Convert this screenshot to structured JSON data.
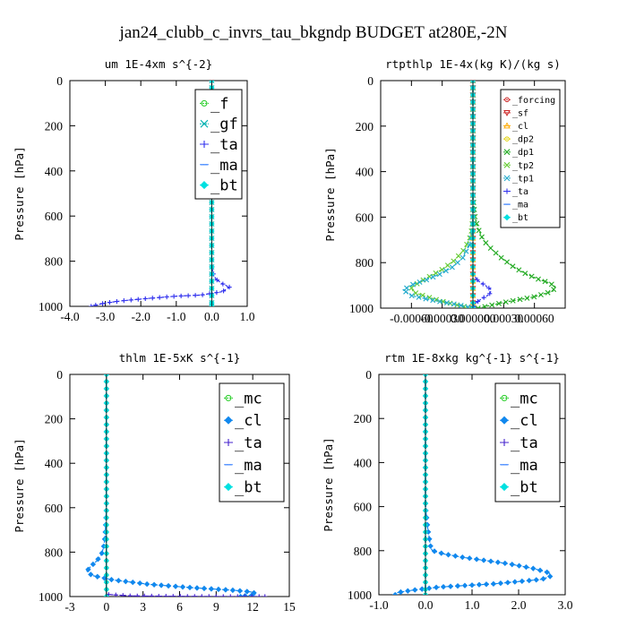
{
  "figure_title": "jan24_clubb_c_invrs_tau_bkgndp  BUDGET at280E,-2N",
  "chart_data": [
    {
      "type": "line",
      "title": "um  1E-4xm s^{-2}",
      "ylabel": "Pressure [hPa]",
      "xlabel": "",
      "xlim": [
        -4.0,
        1.0
      ],
      "ylim": [
        1000,
        0
      ],
      "xticks": [
        -4.0,
        -3.0,
        -2.0,
        -1.0,
        0.0,
        1.0
      ],
      "xtick_labels": [
        "-4.0",
        "-3.0",
        "-2.0",
        "-1.0",
        "0.0",
        "1.0"
      ],
      "yticks": [
        0,
        200,
        400,
        600,
        800,
        1000
      ],
      "legend_position": "top-right",
      "legend_font": 17,
      "series": [
        {
          "name": "_f",
          "color": "#22cc22",
          "marker": "circle",
          "x": [
            0,
            0,
            0,
            0,
            0,
            0,
            0,
            0,
            0,
            0,
            0
          ],
          "y": [
            0,
            100,
            200,
            300,
            400,
            500,
            600,
            700,
            800,
            900,
            1000
          ]
        },
        {
          "name": "_gf",
          "color": "#00b0b0",
          "marker": "x",
          "x": [
            0,
            0,
            0,
            0,
            0,
            0,
            0,
            0,
            0,
            0,
            0
          ],
          "y": [
            0,
            100,
            200,
            300,
            400,
            500,
            600,
            700,
            800,
            900,
            1000
          ]
        },
        {
          "name": "_ta",
          "color": "#3030ee",
          "marker": "plus",
          "x": [
            0,
            0,
            0,
            0,
            0,
            0,
            0.02,
            0.05,
            0.12,
            0.3,
            0.5,
            0.3,
            -0.3,
            -1.0,
            -1.8,
            -2.5,
            -3.0,
            -3.2,
            -3.4
          ],
          "y": [
            0,
            200,
            400,
            600,
            700,
            800,
            840,
            860,
            880,
            900,
            915,
            935,
            950,
            955,
            965,
            975,
            985,
            992,
            1000
          ]
        },
        {
          "name": "_ma",
          "color": "#5090ff",
          "marker": "dash",
          "x": [
            0,
            0,
            0,
            0,
            0,
            0
          ],
          "y": [
            0,
            200,
            400,
            600,
            800,
            1000
          ]
        },
        {
          "name": "_bt",
          "color": "#00e0e0",
          "marker": "diamond",
          "x": [
            0,
            0,
            0,
            0,
            0,
            0
          ],
          "y": [
            0,
            200,
            400,
            600,
            800,
            1000
          ]
        }
      ]
    },
    {
      "type": "line",
      "title": "rtpthlp  1E-4x(kg K)/(kg s)",
      "ylabel": "Pressure [hPa]",
      "xlabel": "",
      "xlim": [
        -0.0009,
        0.0009
      ],
      "ylim": [
        1000,
        0
      ],
      "xticks": [
        -0.0006,
        -0.0003,
        0.0,
        0.0003,
        0.0006
      ],
      "xtick_labels": [
        "-0.00060",
        "-0.00030",
        "0.000000",
        "0.00030",
        "0.00060"
      ],
      "yticks": [
        0,
        200,
        400,
        600,
        800,
        1000
      ],
      "legend_position": "top-right",
      "legend_font": 10,
      "series": [
        {
          "name": "_forcing",
          "color": "#cc2222",
          "marker": "circle",
          "x": [
            0,
            0,
            0,
            0,
            0,
            0,
            0,
            0,
            0,
            0,
            0
          ],
          "y": [
            0,
            100,
            200,
            300,
            400,
            500,
            600,
            700,
            800,
            900,
            1000
          ]
        },
        {
          "name": "_sf",
          "color": "#cc2222",
          "marker": "triangle-down",
          "x": [
            0,
            0,
            0,
            0,
            0,
            0
          ],
          "y": [
            0,
            200,
            400,
            600,
            800,
            1000
          ]
        },
        {
          "name": "_cl",
          "color": "#ffaa00",
          "marker": "triangle",
          "x": [
            0,
            0,
            0,
            0,
            0,
            0
          ],
          "y": [
            0,
            200,
            400,
            600,
            800,
            1000
          ]
        },
        {
          "name": "_dp2",
          "color": "#e0d000",
          "marker": "circle",
          "x": [
            0,
            0,
            0,
            0,
            0,
            0
          ],
          "y": [
            0,
            200,
            400,
            600,
            800,
            1000
          ]
        },
        {
          "name": "_dp1",
          "color": "#22aa22",
          "marker": "x",
          "x": [
            0,
            0,
            0,
            2e-05,
            5e-05,
            0.0001,
            0.00018,
            0.00028,
            0.0004,
            0.00052,
            0.00065,
            0.00075,
            0.0008,
            0.00078,
            0.0006,
            0.0003,
            5e-05
          ],
          "y": [
            0,
            300,
            500,
            600,
            650,
            700,
            740,
            780,
            820,
            850,
            875,
            890,
            905,
            925,
            950,
            975,
            1000
          ]
        },
        {
          "name": "_tp2",
          "color": "#66cc33",
          "marker": "x",
          "x": [
            0,
            0,
            -2e-05,
            -8e-05,
            -0.00018,
            -0.0003,
            -0.00042,
            -0.00052,
            -0.0006,
            -0.00058,
            -0.00045,
            -0.0003,
            -0.00012,
            0
          ],
          "y": [
            0,
            600,
            680,
            740,
            790,
            830,
            860,
            885,
            910,
            930,
            950,
            970,
            990,
            1000
          ]
        },
        {
          "name": "_tp1",
          "color": "#22aacc",
          "marker": "x",
          "x": [
            0,
            0,
            -3e-05,
            -0.0001,
            -0.0002,
            -0.00032,
            -0.00045,
            -0.00058,
            -0.00068,
            -0.0006,
            -0.0004,
            -0.00015,
            0
          ],
          "y": [
            0,
            650,
            720,
            780,
            820,
            850,
            875,
            895,
            920,
            945,
            965,
            985,
            1000
          ]
        },
        {
          "name": "_ta",
          "color": "#3030ee",
          "marker": "plus",
          "x": [
            0,
            0,
            0,
            5e-05,
            0.00012,
            0.00018,
            0.00016,
            8e-05,
            2e-05,
            0
          ],
          "y": [
            0,
            700,
            850,
            880,
            900,
            920,
            940,
            960,
            980,
            1000
          ]
        },
        {
          "name": "_ma",
          "color": "#5090ff",
          "marker": "dash",
          "x": [
            0,
            0,
            0,
            0,
            0,
            0
          ],
          "y": [
            0,
            200,
            400,
            600,
            800,
            1000
          ]
        },
        {
          "name": "_bt",
          "color": "#00e0e0",
          "marker": "diamond",
          "x": [
            0,
            0,
            0,
            0,
            0,
            0
          ],
          "y": [
            0,
            200,
            400,
            600,
            800,
            1000
          ]
        }
      ]
    },
    {
      "type": "line",
      "title": "thlm  1E-5xK s^{-1}",
      "ylabel": "Pressure [hPa]",
      "xlabel": "",
      "xlim": [
        -3,
        15
      ],
      "ylim": [
        1000,
        0
      ],
      "xticks": [
        -3,
        0,
        3,
        6,
        9,
        12,
        15
      ],
      "xtick_labels": [
        "-3",
        "0",
        "3",
        "6",
        "9",
        "12",
        "15"
      ],
      "yticks": [
        0,
        200,
        400,
        600,
        800,
        1000
      ],
      "legend_position": "top-right",
      "legend_font": 17,
      "series": [
        {
          "name": "_mc",
          "color": "#22cc22",
          "marker": "circle",
          "x": [
            0,
            0,
            0,
            0,
            0,
            0,
            0,
            0,
            0,
            0,
            0
          ],
          "y": [
            0,
            100,
            200,
            300,
            400,
            500,
            600,
            700,
            800,
            900,
            1000
          ]
        },
        {
          "name": "_cl",
          "color": "#1188ee",
          "marker": "diamond",
          "x": [
            0,
            0,
            0,
            -0.05,
            -0.1,
            -0.2,
            -0.4,
            -0.8,
            -1.3,
            -1.6,
            -1.2,
            0.5,
            3.5,
            7.0,
            10.5,
            12.0,
            12.3,
            11.0
          ],
          "y": [
            0,
            400,
            600,
            660,
            720,
            770,
            810,
            840,
            865,
            885,
            905,
            925,
            945,
            960,
            972,
            980,
            990,
            1000
          ]
        },
        {
          "name": "_ta",
          "color": "#4422cc",
          "marker": "plus",
          "x": [
            0,
            0,
            0,
            0,
            2.0,
            6.0,
            10.0,
            13.0
          ],
          "y": [
            0,
            500,
            900,
            990,
            997,
            999,
            1000,
            1000
          ]
        },
        {
          "name": "_ma",
          "color": "#5090ff",
          "marker": "dash",
          "x": [
            0,
            0,
            0,
            0,
            0,
            0
          ],
          "y": [
            0,
            200,
            400,
            600,
            800,
            1000
          ]
        },
        {
          "name": "_bt",
          "color": "#00e0e0",
          "marker": "diamond",
          "x": [
            0,
            0,
            0,
            0,
            0,
            0
          ],
          "y": [
            0,
            200,
            400,
            600,
            800,
            1000
          ]
        }
      ]
    },
    {
      "type": "line",
      "title": "rtm  1E-8xkg kg^{-1} s^{-1}",
      "ylabel": "Pressure [hPa]",
      "xlabel": "",
      "xlim": [
        -1.0,
        3.0
      ],
      "ylim": [
        1000,
        0
      ],
      "xticks": [
        -1.0,
        0.0,
        1.0,
        2.0,
        3.0
      ],
      "xtick_labels": [
        "-1.0",
        "0.0",
        "1.0",
        "2.0",
        "3.0"
      ],
      "yticks": [
        0,
        200,
        400,
        600,
        800,
        1000
      ],
      "legend_position": "top-right",
      "legend_font": 17,
      "series": [
        {
          "name": "_mc",
          "color": "#22cc22",
          "marker": "circle",
          "x": [
            0,
            0,
            0,
            0,
            0,
            0,
            0,
            0,
            0,
            0,
            0
          ],
          "y": [
            0,
            100,
            200,
            300,
            400,
            500,
            600,
            700,
            800,
            900,
            1000
          ]
        },
        {
          "name": "_cl",
          "color": "#1188ee",
          "marker": "diamond",
          "x": [
            0,
            0,
            0,
            0.01,
            0.03,
            0.05,
            0.08,
            0.1,
            0.12,
            0.15,
            0.4,
            0.8,
            1.3,
            1.8,
            2.3,
            2.65,
            2.7,
            2.5,
            1.5,
            0.3,
            -0.3,
            -0.6,
            -0.65
          ],
          "y": [
            0,
            400,
            580,
            620,
            660,
            700,
            740,
            770,
            790,
            800,
            815,
            830,
            845,
            860,
            880,
            900,
            915,
            930,
            950,
            965,
            980,
            990,
            1000
          ]
        },
        {
          "name": "_ta",
          "color": "#4422cc",
          "marker": "plus",
          "x": [
            0,
            0,
            0,
            0,
            0,
            0
          ],
          "y": [
            0,
            200,
            400,
            600,
            800,
            1000
          ]
        },
        {
          "name": "_ma",
          "color": "#5090ff",
          "marker": "dash",
          "x": [
            0,
            0,
            0,
            0,
            0,
            0
          ],
          "y": [
            0,
            200,
            400,
            600,
            800,
            1000
          ]
        },
        {
          "name": "_bt",
          "color": "#00e0e0",
          "marker": "diamond",
          "x": [
            0,
            0,
            0,
            0,
            0,
            0
          ],
          "y": [
            0,
            200,
            400,
            600,
            800,
            1000
          ]
        }
      ]
    }
  ]
}
